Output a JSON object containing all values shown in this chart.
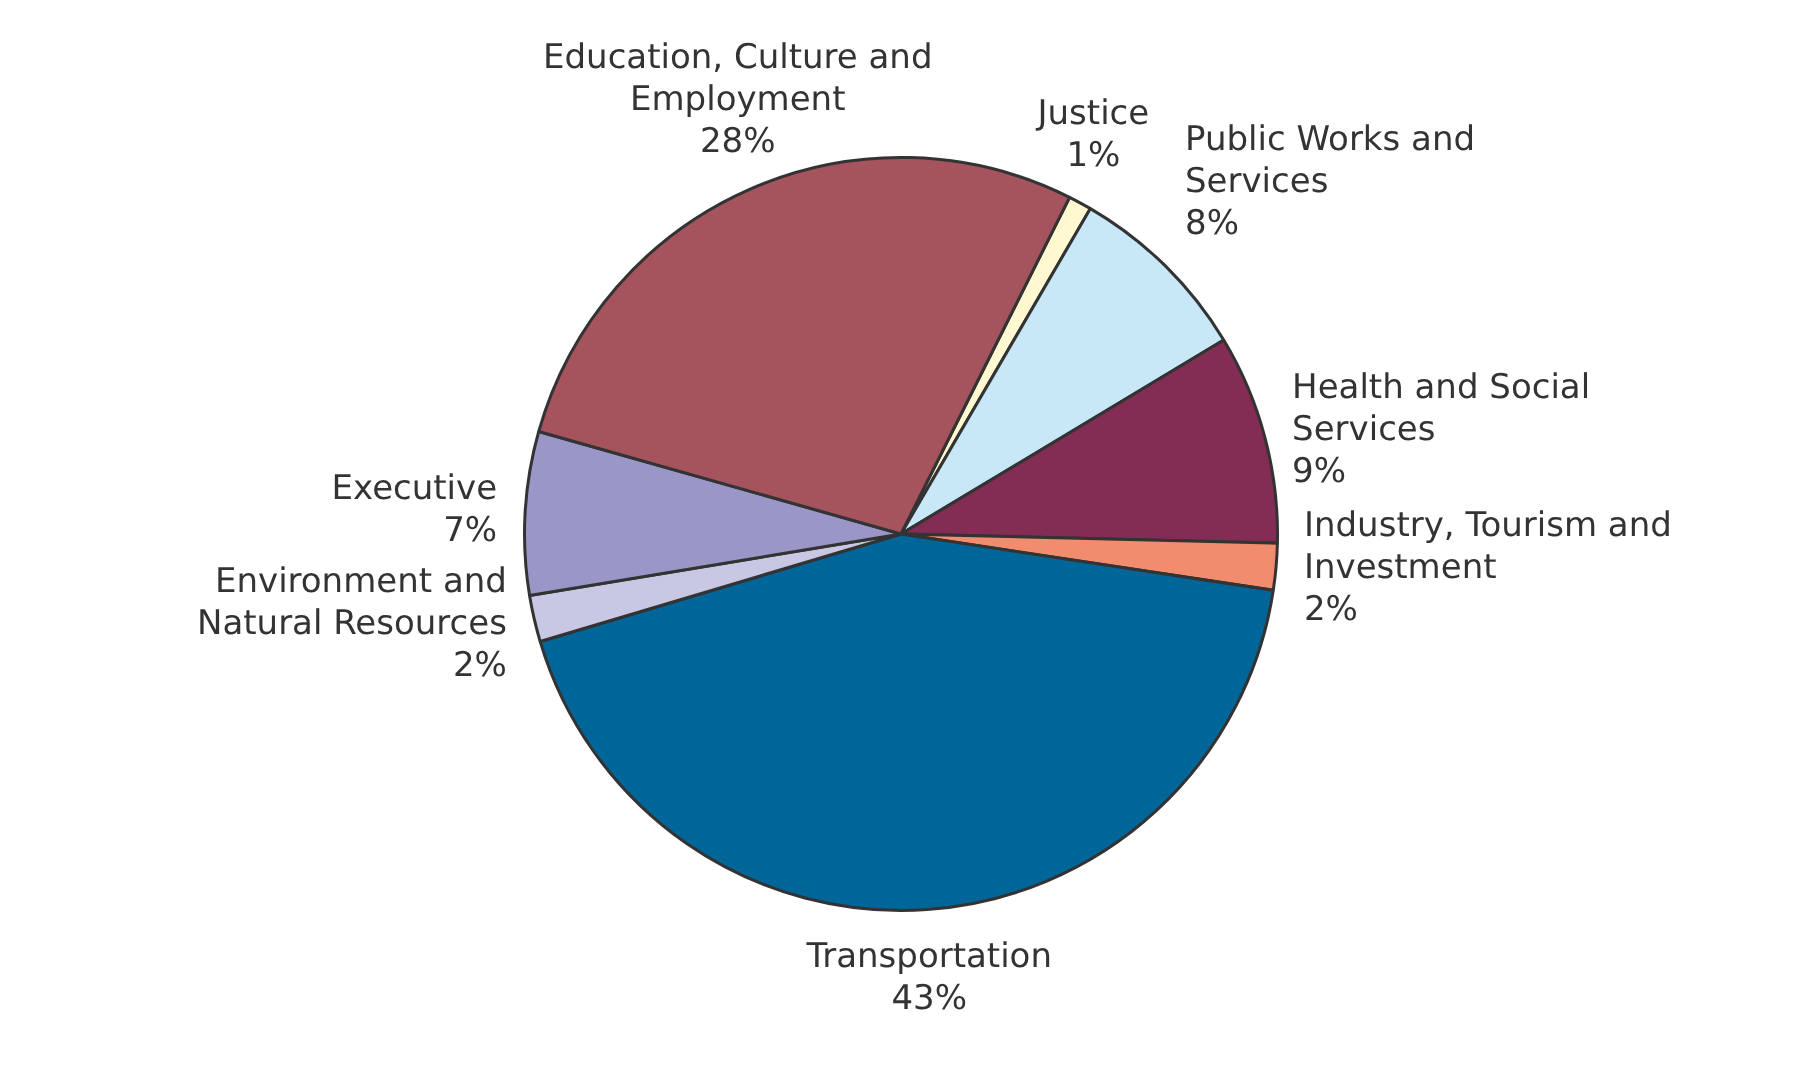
{
  "chart_data": {
    "type": "pie",
    "categories": [
      "Justice",
      "Public Works and Services",
      "Health and Social Services",
      "Industry, Tourism and Investment",
      "Transportation",
      "Environment and Natural Resources",
      "Executive",
      "Education, Culture and Employment"
    ],
    "values": [
      1,
      8,
      9,
      2,
      43,
      2,
      7,
      28
    ],
    "value_labels": [
      "1%",
      "8%",
      "9%",
      "2%",
      "43%",
      "2%",
      "7%",
      "28%"
    ],
    "colors": [
      "#fff8d0",
      "#c8e8f8",
      "#832d55",
      "#f28c6e",
      "#006599",
      "#c8c8e4",
      "#9b96c8",
      "#a5535d"
    ],
    "legend": false
  }
}
